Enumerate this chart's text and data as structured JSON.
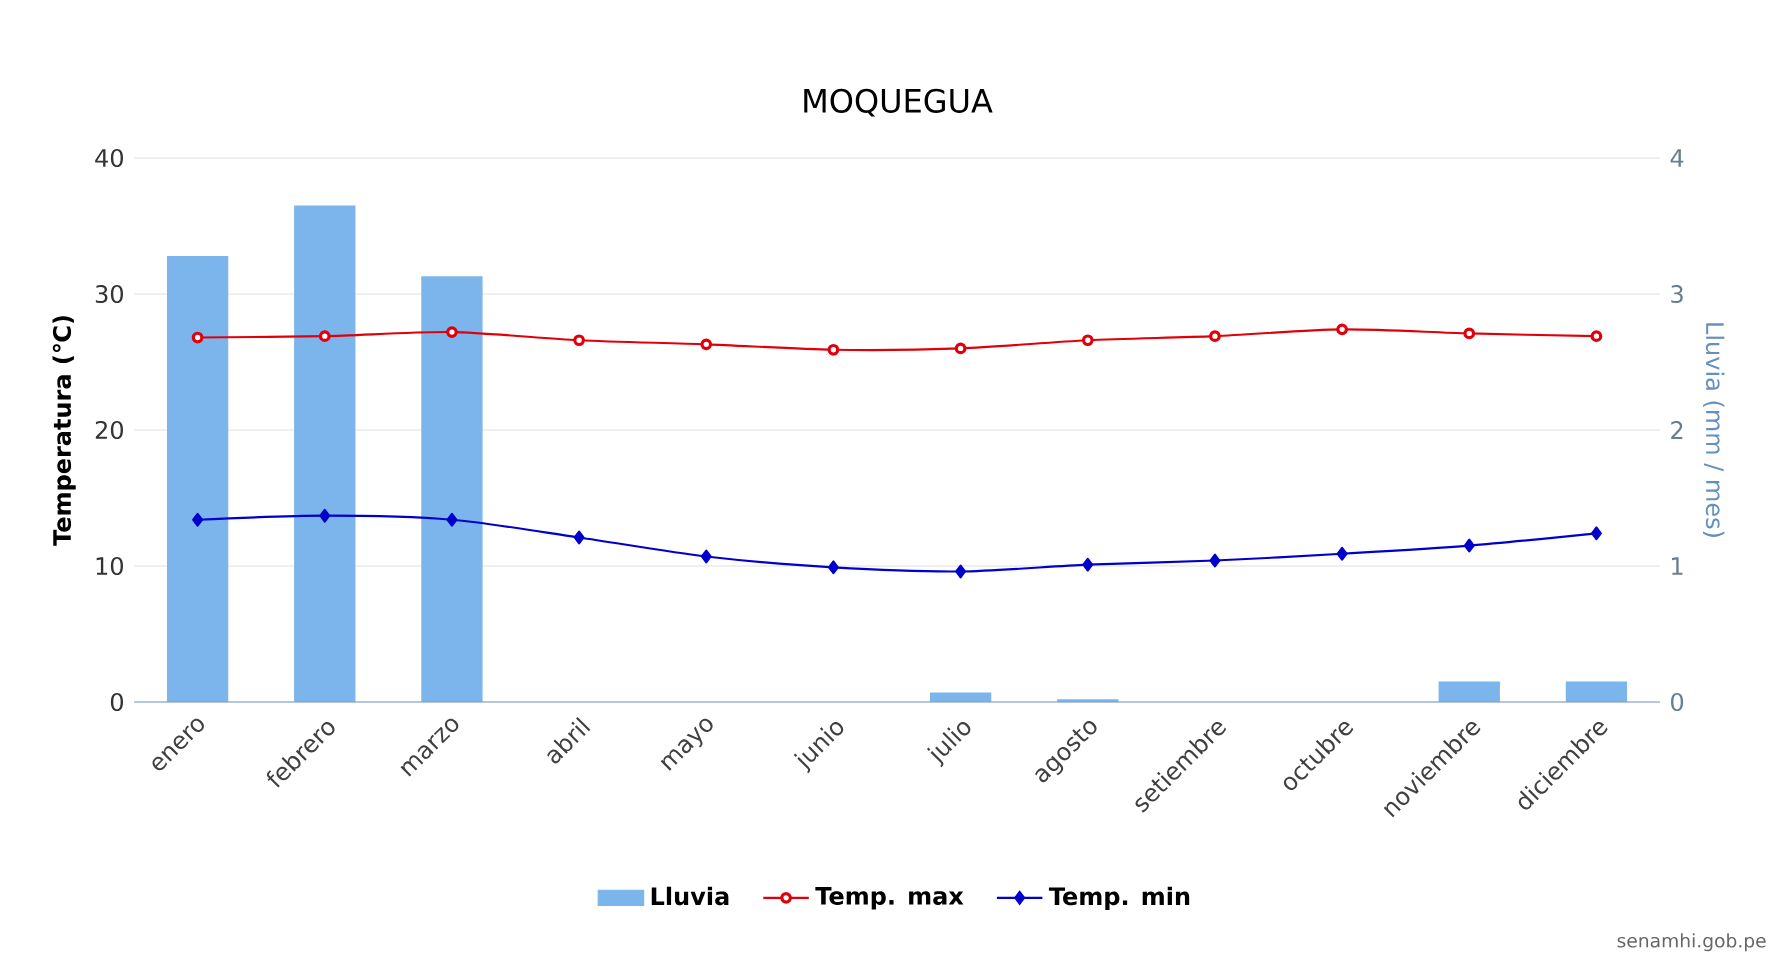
{
  "chart_data": {
    "type": "bar",
    "title": "MOQUEGUA",
    "ylabel": "Temperatura (℃)",
    "y2label": "Lluvia (mm / mes)",
    "categories": [
      "enero",
      "febrero",
      "marzo",
      "abril",
      "mayo",
      "junio",
      "julio",
      "agosto",
      "setiembre",
      "octubre",
      "noviembre",
      "diciembre"
    ],
    "series": [
      {
        "name": "Lluvia",
        "axis": "y2",
        "color": "#7cb5ec",
        "values": [
          3.28,
          3.65,
          3.13,
          0,
          0,
          0,
          0.07,
          0.02,
          0,
          0,
          0.15,
          0.15
        ]
      },
      {
        "name": "Temp. max",
        "type": "line",
        "color": "#e0000a",
        "marker": "circle",
        "values": [
          26.8,
          26.9,
          27.2,
          26.6,
          26.3,
          25.9,
          26.0,
          26.6,
          26.9,
          27.4,
          27.1,
          26.9
        ]
      },
      {
        "name": "Temp. min",
        "type": "line",
        "color": "#0000cc",
        "marker": "diamond",
        "values": [
          13.4,
          13.7,
          13.4,
          12.1,
          10.7,
          9.9,
          9.6,
          10.1,
          10.4,
          10.9,
          11.5,
          12.4
        ]
      }
    ],
    "ylim": [
      0,
      40
    ],
    "yticks": [
      0,
      10,
      20,
      30,
      40
    ],
    "y2lim": [
      0,
      4
    ],
    "y2ticks": [
      0,
      1,
      2,
      3,
      4
    ],
    "grid": "y",
    "legend": "bottom",
    "annotations": [
      "senamhi.gob.pe"
    ]
  }
}
